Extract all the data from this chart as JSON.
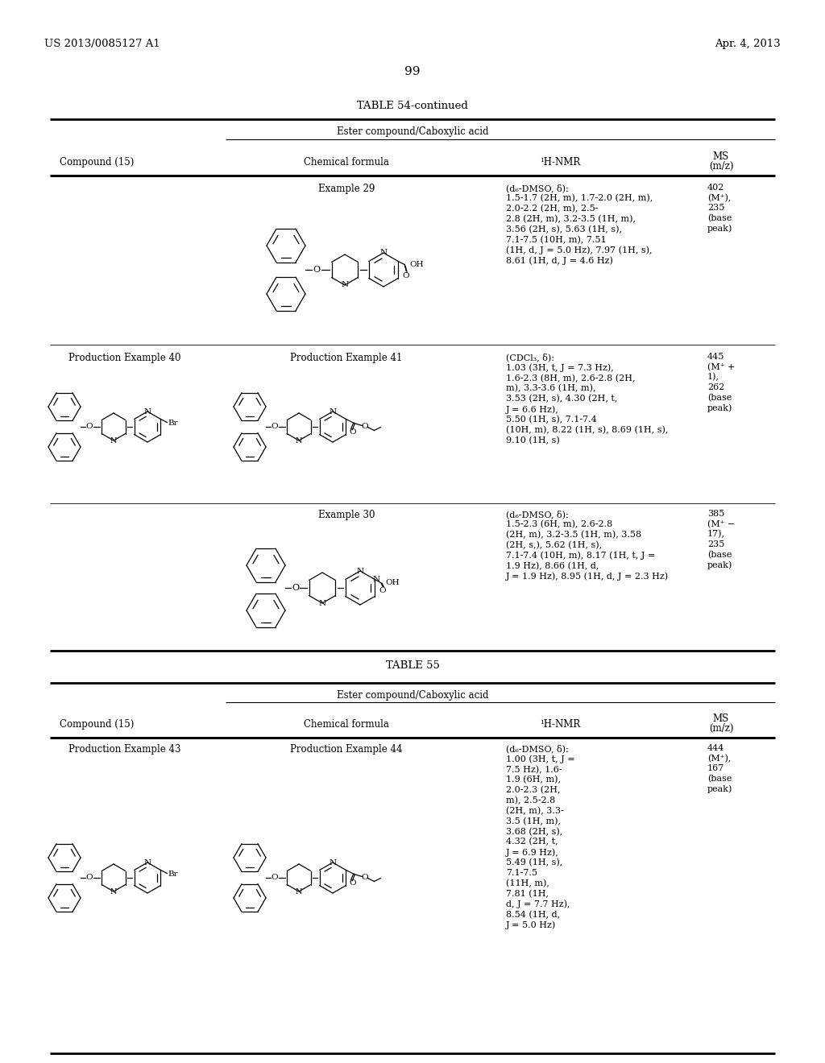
{
  "title_left": "US 2013/0085127 A1",
  "title_right": "Apr. 4, 2013",
  "page_number": "99",
  "table54_title": "TABLE 54-continued",
  "table55_title": "TABLE 55",
  "col_header_span": "Ester compound/Caboxylic acid",
  "col1": "Compound (15)",
  "col2": "Chemical formula",
  "col3": "¹H-NMR",
  "col4_line1": "MS",
  "col4_line2": "(m/z)",
  "bg_color": "#ffffff",
  "nmr29": "(d₆-DMSO, δ):\n1.5-1.7 (2H, m), 1.7-2.0 (2H, m),\n2.0-2.2 (2H, m), 2.5-\n2.8 (2H, m), 3.2-3.5 (1H, m),\n3.56 (2H, s), 5.63 (1H, s),\n7.1-7.5 (10H, m), 7.51\n(1H, d, J = 5.0 Hz), 7.97 (1H, s),\n8.61 (1H, d, J = 4.6 Hz)",
  "ms29": "402\n(M⁺),\n235\n(base\npeak)",
  "nmr41": "(CDCl₃, δ):\n1.03 (3H, t, J = 7.3 Hz),\n1.6-2.3 (8H, m), 2.6-2.8 (2H,\nm), 3.3-3.6 (1H, m),\n3.53 (2H, s), 4.30 (2H, t,\nJ = 6.6 Hz),\n5.50 (1H, s), 7.1-7.4\n(10H, m), 8.22 (1H, s), 8.69 (1H, s),\n9.10 (1H, s)",
  "ms41": "445\n(M⁺ +\n1),\n262\n(base\npeak)",
  "nmr30": "(d₆-DMSO, δ):\n1.5-2.3 (6H, m), 2.6-2.8\n(2H, m), 3.2-3.5 (1H, m), 3.58\n(2H, s,), 5.62 (1H, s),\n7.1-7.4 (10H, m), 8.17 (1H, t, J =\n1.9 Hz), 8.66 (1H, d,\nJ = 1.9 Hz), 8.95 (1H, d, J = 2.3 Hz)",
  "ms30": "385\n(M⁺ −\n17),\n235\n(base\npeak)",
  "nmr44": "(d₆-DMSO, δ):\n1.00 (3H, t, J =\n7.5 Hz), 1.6-\n1.9 (6H, m),\n2.0-2.3 (2H,\nm), 2.5-2.8\n(2H, m), 3.3-\n3.5 (1H, m),\n3.68 (2H, s),\n4.32 (2H, t,\nJ = 6.9 Hz),\n5.49 (1H, s),\n7.1-7.5\n(11H, m),\n7.81 (1H,\nd, J = 7.7 Hz),\n8.54 (1H, d,\nJ = 5.0 Hz)",
  "ms44": "444\n(M⁺),\n167\n(base\npeak)"
}
